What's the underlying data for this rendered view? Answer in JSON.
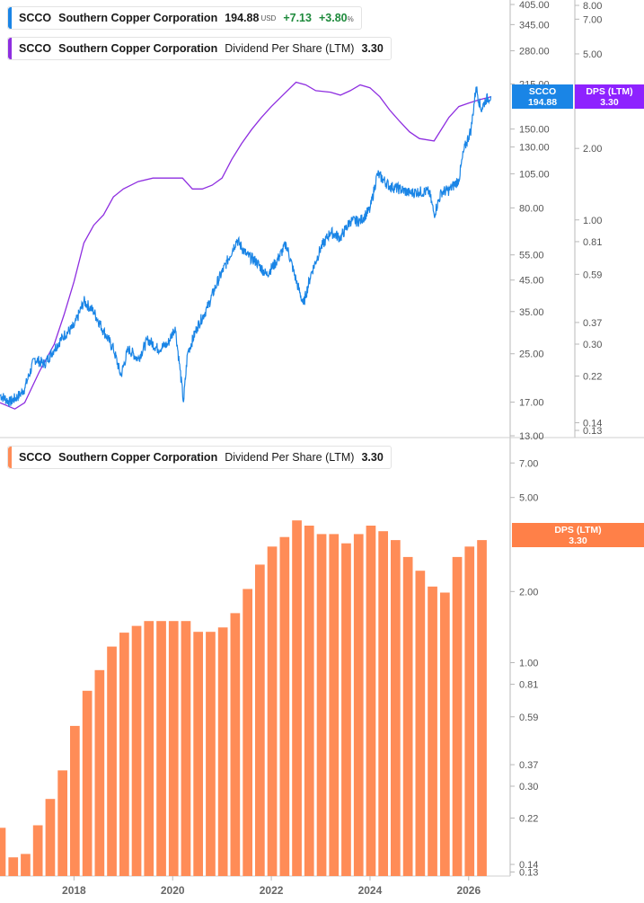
{
  "legends": {
    "price": {
      "ticker": "SCCO",
      "name": "Southern Copper Corporation",
      "price": "194.88",
      "currency": "USD",
      "change": "+7.13",
      "change_pct": "+3.80",
      "pct_sign": "%"
    },
    "dps_top": {
      "ticker": "SCCO",
      "name": "Southern Copper Corporation",
      "metric": "Dividend Per Share (LTM)",
      "value": "3.30"
    },
    "dps_bottom": {
      "ticker": "SCCO",
      "name": "Southern Copper Corporation",
      "metric": "Dividend Per Share (LTM)",
      "value": "3.30"
    }
  },
  "tags": {
    "price": {
      "label": "SCCO",
      "value": "194.88"
    },
    "dps_top": {
      "label": "DPS (LTM)",
      "value": "3.30"
    },
    "dps_bottom": {
      "label": "DPS (LTM)",
      "value": "3.30"
    }
  },
  "colors": {
    "price": "#1a85e6",
    "dps_line": "#8e2ee0",
    "bars": "#ff8c57",
    "tag_price": "#1a85e6",
    "tag_dps": "#8e22ff",
    "tag_bar": "#ff8048"
  },
  "chart_data": [
    {
      "type": "line",
      "title": "",
      "scale": "log",
      "ylim_price": [
        13,
        405
      ],
      "ylim_dps": [
        0.13,
        8
      ],
      "price_ticks": [
        "405.00",
        "345.00",
        "280.00",
        "215.00",
        "150.00",
        "130.00",
        "105.00",
        "80.00",
        "55.00",
        "45.00",
        "35.00",
        "25.00",
        "17.00",
        "13.00"
      ],
      "dps_ticks": [
        "8.00",
        "7.00",
        "5.00",
        "2.00",
        "1.00",
        "0.81",
        "0.59",
        "0.37",
        "0.30",
        "0.22",
        "0.14",
        "0.13"
      ],
      "series": [
        {
          "name": "SCCO",
          "axis": "price",
          "x": [
            2016.5,
            2016.7,
            2016.9,
            2017.0,
            2017.2,
            2017.4,
            2017.6,
            2017.8,
            2018.0,
            2018.2,
            2018.4,
            2018.6,
            2018.8,
            2018.95,
            2019.1,
            2019.3,
            2019.5,
            2019.7,
            2019.9,
            2020.05,
            2020.15,
            2020.22,
            2020.3,
            2020.5,
            2020.7,
            2020.9,
            2021.1,
            2021.3,
            2021.5,
            2021.7,
            2021.9,
            2022.1,
            2022.3,
            2022.5,
            2022.65,
            2022.8,
            2023.0,
            2023.2,
            2023.4,
            2023.6,
            2023.8,
            2024.0,
            2024.15,
            2024.4,
            2024.6,
            2024.8,
            2025.0,
            2025.2,
            2025.3,
            2025.45,
            2025.6,
            2025.8,
            2025.9,
            2026.05,
            2026.15,
            2026.25,
            2026.35,
            2026.45
          ],
          "values": [
            18,
            17,
            18,
            19,
            24,
            23,
            26,
            29,
            31,
            38,
            35,
            30,
            26,
            21,
            26,
            24,
            28,
            26,
            27,
            31,
            22,
            17,
            25,
            31,
            36,
            44,
            52,
            62,
            55,
            52,
            47,
            52,
            60,
            45,
            37,
            47,
            58,
            66,
            63,
            72,
            72,
            79,
            105,
            95,
            93,
            90,
            91,
            91,
            76,
            91,
            92,
            100,
            126,
            150,
            210,
            175,
            190,
            194.88
          ]
        },
        {
          "name": "Dividend Per Share (LTM)",
          "axis": "dps",
          "x": [
            2016.5,
            2016.8,
            2017.0,
            2017.3,
            2017.6,
            2017.8,
            2018.0,
            2018.2,
            2018.4,
            2018.6,
            2018.8,
            2019.0,
            2019.3,
            2019.6,
            2019.9,
            2020.2,
            2020.4,
            2020.6,
            2020.8,
            2021.0,
            2021.2,
            2021.4,
            2021.6,
            2021.8,
            2022.0,
            2022.2,
            2022.5,
            2022.7,
            2022.9,
            2023.2,
            2023.4,
            2023.6,
            2023.8,
            2024.0,
            2024.2,
            2024.4,
            2024.6,
            2024.8,
            2025.0,
            2025.3,
            2025.6,
            2025.8,
            2026.0,
            2026.2,
            2026.45
          ],
          "values": [
            0.17,
            0.16,
            0.17,
            0.23,
            0.3,
            0.4,
            0.55,
            0.8,
            0.95,
            1.05,
            1.25,
            1.35,
            1.45,
            1.5,
            1.5,
            1.5,
            1.35,
            1.35,
            1.4,
            1.5,
            1.8,
            2.1,
            2.4,
            2.7,
            3.0,
            3.3,
            3.8,
            3.7,
            3.5,
            3.45,
            3.35,
            3.5,
            3.7,
            3.6,
            3.3,
            2.9,
            2.6,
            2.35,
            2.2,
            2.15,
            2.7,
            3.0,
            3.1,
            3.2,
            3.3
          ]
        }
      ]
    },
    {
      "type": "bar",
      "title": "",
      "scale": "log",
      "ylim": [
        0.125,
        8
      ],
      "ticks": [
        "7.00",
        "5.00",
        "2.00",
        "1.00",
        "0.81",
        "0.59",
        "0.37",
        "0.30",
        "0.22",
        "0.14",
        "0.13"
      ],
      "x_ticks": [
        "2018",
        "2020",
        "2022",
        "2024",
        "2026"
      ],
      "series": [
        {
          "name": "Dividend Per Share (LTM)",
          "x": [
            2016.5,
            2016.75,
            2017.0,
            2017.25,
            2017.5,
            2017.75,
            2018.0,
            2018.25,
            2018.5,
            2018.75,
            2019.0,
            2019.25,
            2019.5,
            2019.75,
            2020.0,
            2020.25,
            2020.5,
            2020.75,
            2021.0,
            2021.25,
            2021.5,
            2021.75,
            2022.0,
            2022.25,
            2022.5,
            2022.75,
            2023.0,
            2023.25,
            2023.5,
            2023.75,
            2024.0,
            2024.25,
            2024.5,
            2024.75,
            2025.0,
            2025.25,
            2025.5,
            2025.75,
            2026.0,
            2026.25
          ],
          "values": [
            0.2,
            0.15,
            0.155,
            0.205,
            0.265,
            0.35,
            0.54,
            0.76,
            0.93,
            1.17,
            1.34,
            1.43,
            1.5,
            1.5,
            1.5,
            1.5,
            1.35,
            1.35,
            1.41,
            1.62,
            2.05,
            2.6,
            3.1,
            3.4,
            4.0,
            3.8,
            3.5,
            3.5,
            3.2,
            3.5,
            3.8,
            3.6,
            3.3,
            2.8,
            2.45,
            2.1,
            1.98,
            2.8,
            3.1,
            3.3
          ]
        }
      ]
    }
  ]
}
